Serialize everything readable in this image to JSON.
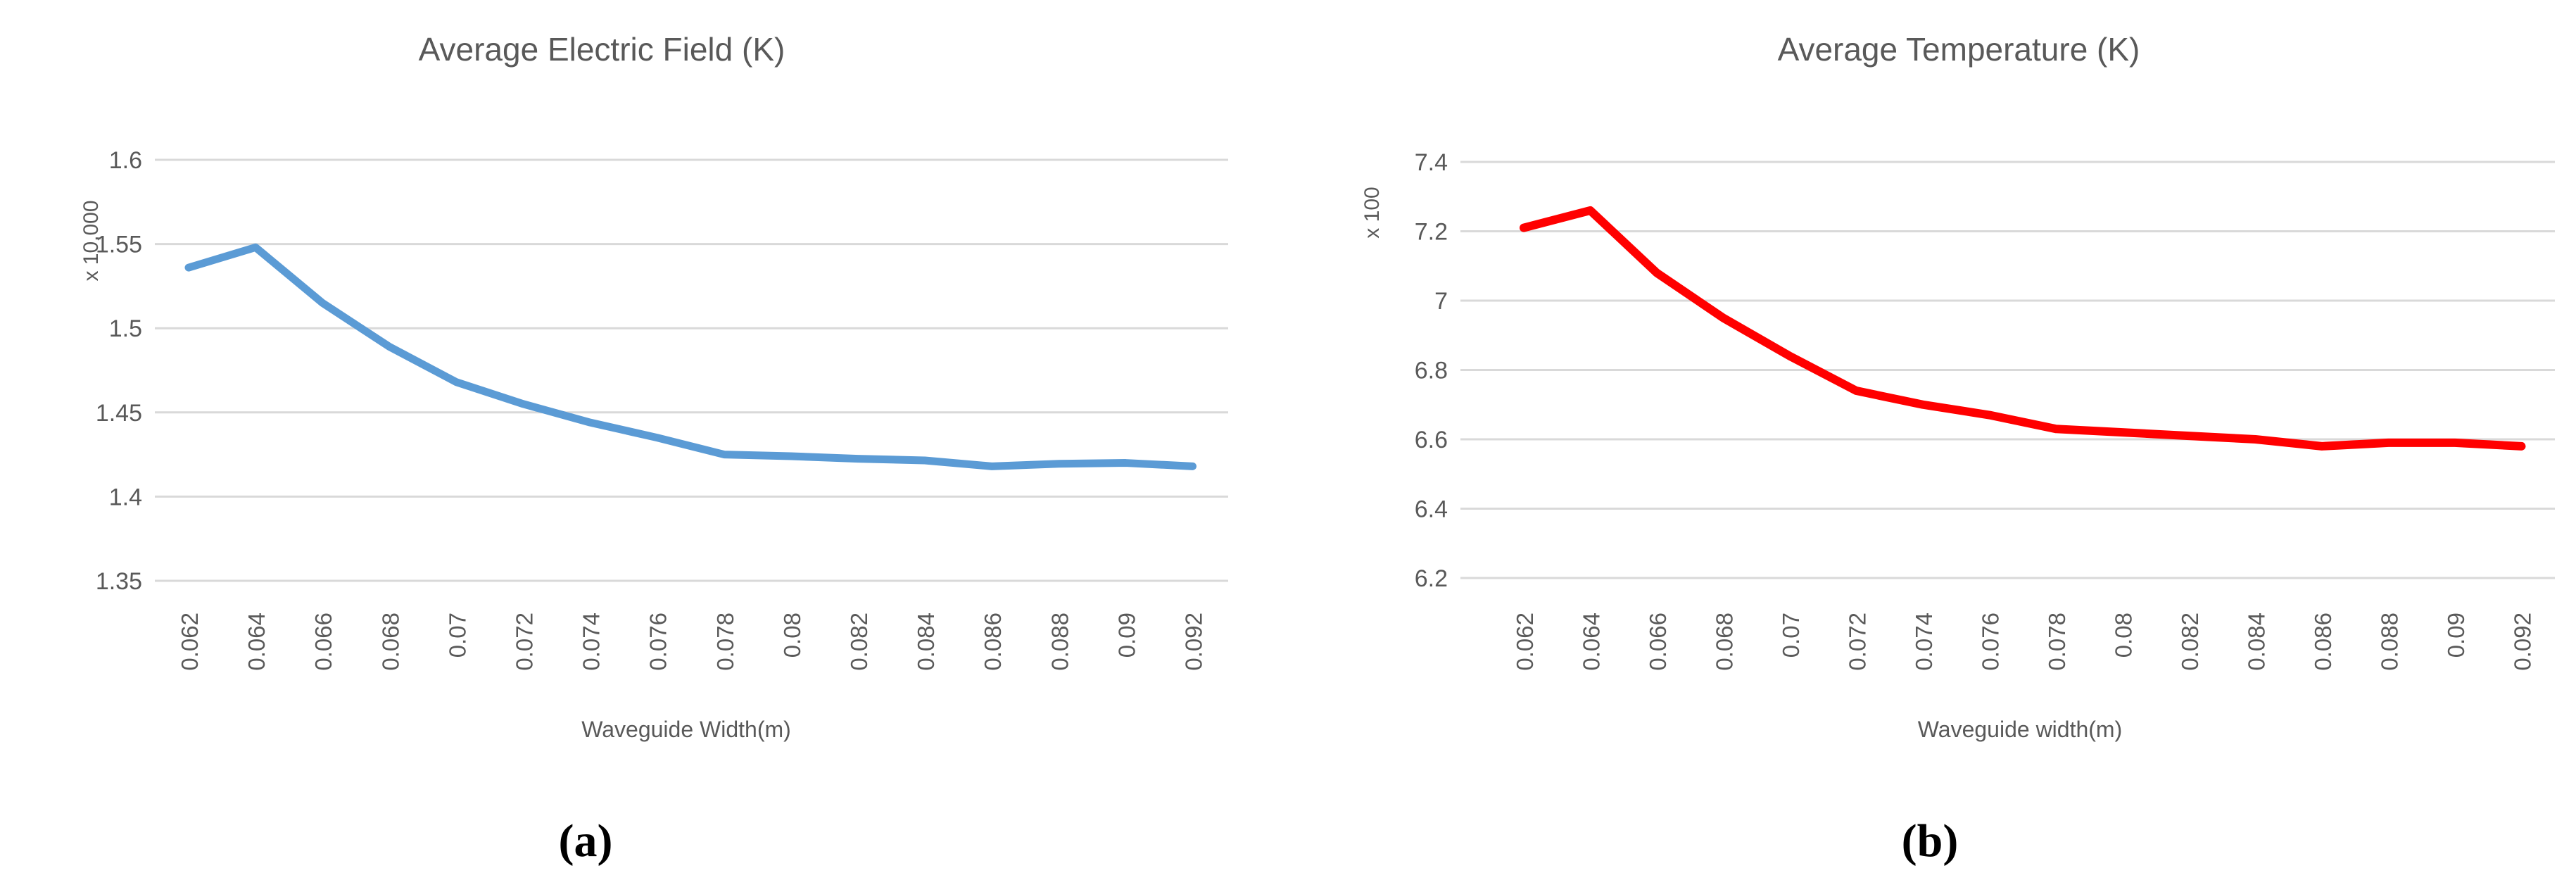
{
  "figure": {
    "panel_label_a": "(a)",
    "panel_label_b": "(b)"
  },
  "colors": {
    "grid": "#D9D9D9",
    "axis_text": "#595959",
    "title_text": "#595959",
    "panel_label_text": "#000000",
    "series_blue": "#5B9BD5",
    "series_red": "#FF0000",
    "background": "#FFFFFF"
  },
  "chart_data": [
    {
      "type": "line",
      "title": "Average Electric Field (K)",
      "xlabel": "Waveguide Width(m)",
      "ylabel": "x 10,000",
      "legend": "none",
      "grid": "horizontal",
      "ylim": [
        1.35,
        1.6
      ],
      "y_tick_values": [
        1.6,
        1.55,
        1.5,
        1.45,
        1.4,
        1.35
      ],
      "y_tick_labels": [
        "1.6",
        "1.55",
        "1.5",
        "1.45",
        "1.4",
        "1.35"
      ],
      "categories": [
        "0.062",
        "0.064",
        "0.066",
        "0.068",
        "0.07",
        "0.072",
        "0.074",
        "0.076",
        "0.078",
        "0.08",
        "0.082",
        "0.084",
        "0.086",
        "0.088",
        "0.09",
        "0.092"
      ],
      "series": [
        {
          "name": "Average Electric Field",
          "color": "#5B9BD5",
          "values": [
            1.536,
            1.548,
            1.515,
            1.489,
            1.468,
            1.455,
            1.444,
            1.435,
            1.425,
            1.424,
            1.4225,
            1.4215,
            1.418,
            1.4195,
            1.42,
            1.418
          ]
        }
      ]
    },
    {
      "type": "line",
      "title": "Average Temperature (K)",
      "xlabel": "Waveguide width(m)",
      "ylabel": "x 100",
      "legend": "none",
      "grid": "horizontal",
      "ylim": [
        6.2,
        7.4
      ],
      "y_tick_values": [
        7.4,
        7.2,
        7.0,
        6.8,
        6.6,
        6.4,
        6.2
      ],
      "y_tick_labels": [
        "7.4",
        "7.2",
        "7",
        "6.8",
        "6.6",
        "6.4",
        "6.2"
      ],
      "categories": [
        "0.062",
        "0.064",
        "0.066",
        "0.068",
        "0.07",
        "0.072",
        "0.074",
        "0.076",
        "0.078",
        "0.08",
        "0.082",
        "0.084",
        "0.086",
        "0.088",
        "0.09",
        "0.092"
      ],
      "series": [
        {
          "name": "Average Temperature",
          "color": "#FF0000",
          "values": [
            7.21,
            7.26,
            7.08,
            6.95,
            6.84,
            6.74,
            6.7,
            6.67,
            6.63,
            6.62,
            6.61,
            6.6,
            6.58,
            6.59,
            6.59,
            6.58
          ]
        }
      ]
    }
  ]
}
